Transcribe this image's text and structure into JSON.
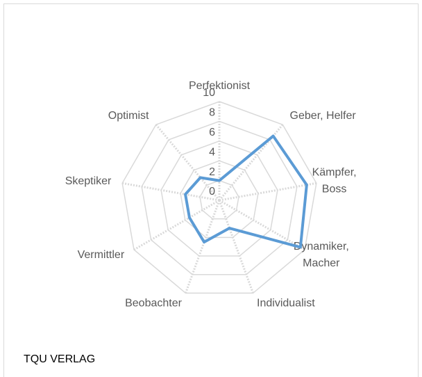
{
  "chart_data": {
    "type": "radar",
    "categories": [
      "Perfektionist",
      "Geber, Helfer",
      "Kämpfer, Boss",
      "Dynamiker, Macher",
      "Individualist",
      "Beobachter",
      "Vermittler",
      "Skeptiker",
      "Optimist"
    ],
    "values": [
      2,
      8.5,
      9,
      9.5,
      3,
      4.5,
      3.5,
      3.5,
      3
    ],
    "color": "#5b9bd5",
    "ylim": [
      0,
      10
    ],
    "yticks": [
      0,
      2,
      4,
      6,
      8,
      10
    ],
    "grid": true
  },
  "footer": "TQU VERLAG"
}
